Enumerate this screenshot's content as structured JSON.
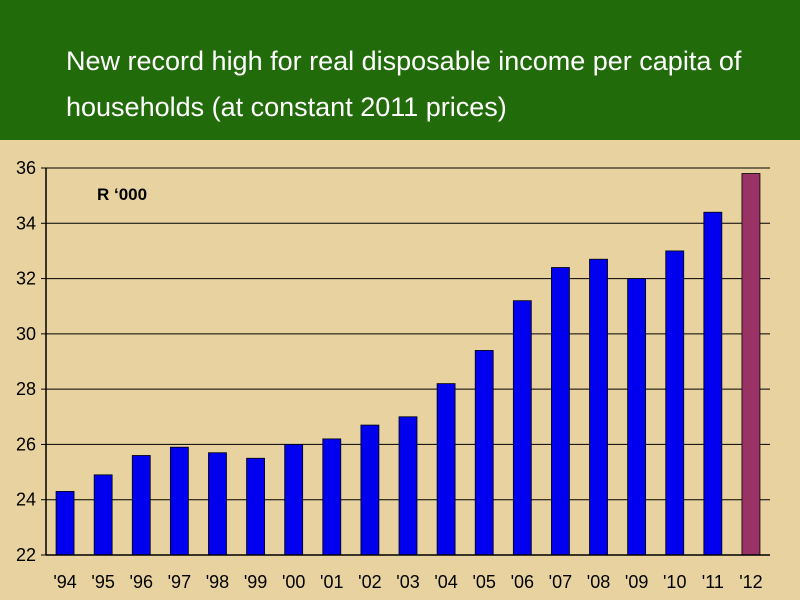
{
  "slide": {
    "title": "New record high for real disposable income per capita of households (at constant 2011 prices)"
  },
  "chart_data": {
    "type": "bar",
    "unit_label": "R ‘000",
    "categories": [
      "'94",
      "'95",
      "'96",
      "'97",
      "'98",
      "'99",
      "'00",
      "'01",
      "'02",
      "'03",
      "'04",
      "'05",
      "'06",
      "'07",
      "'08",
      "'09",
      "'10",
      "'11",
      "'12"
    ],
    "values": [
      24.3,
      24.9,
      25.6,
      25.9,
      25.7,
      25.5,
      26.0,
      26.2,
      26.7,
      27.0,
      28.2,
      29.4,
      31.2,
      32.4,
      32.7,
      32.0,
      33.0,
      34.4,
      35.8
    ],
    "ylim": [
      22,
      36
    ],
    "yticks": [
      22,
      24,
      26,
      28,
      30,
      32,
      34,
      36
    ],
    "grid": true,
    "colors": {
      "bar": "#0000ee",
      "highlight": "#993366",
      "gridline": "#000000"
    },
    "highlight_index": 18
  }
}
